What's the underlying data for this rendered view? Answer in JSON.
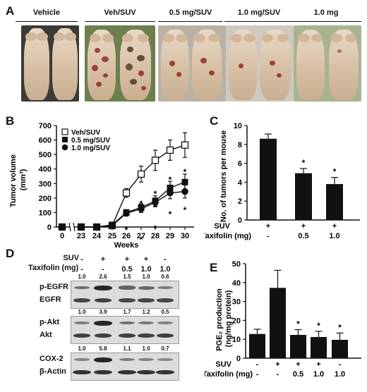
{
  "panel_labels": {
    "a": "A",
    "b": "B",
    "c": "C",
    "d": "D",
    "e": "E"
  },
  "panel_a": {
    "groups": [
      "Vehicle",
      "Veh/SUV",
      "0.5 mg/SUV",
      "1.0 mg/SUV",
      "1.0 mg"
    ]
  },
  "colors": {
    "bar": "#111111",
    "lesion": "#8e2a22",
    "skin": "#e2ceb7"
  },
  "chart_data": [
    {
      "id": "B",
      "type": "line",
      "xlabel": "Weeks",
      "ylabel": "Tumor volume (mm³)",
      "x": [
        0,
        23,
        24,
        25,
        26,
        27,
        28,
        29,
        30
      ],
      "ylim": [
        0,
        700
      ],
      "yticks": [
        0,
        100,
        200,
        300,
        400,
        500,
        600,
        700
      ],
      "axis_break_after_x": 0,
      "legend_position": "top-left",
      "series": [
        {
          "name": "Veh/SUV",
          "marker": "open-square",
          "values": [
            0,
            0,
            0,
            10,
            235,
            365,
            460,
            530,
            565
          ],
          "err": [
            0,
            0,
            0,
            10,
            30,
            55,
            70,
            70,
            85
          ]
        },
        {
          "name": "0.5 mg/SUV",
          "marker": "filled-square",
          "values": [
            0,
            0,
            0,
            15,
            100,
            135,
            180,
            270,
            310
          ],
          "err": [
            0,
            0,
            0,
            8,
            20,
            25,
            35,
            45,
            55
          ]
        },
        {
          "name": "1.0 mg/SUV",
          "marker": "filled-circle",
          "values": [
            0,
            0,
            0,
            10,
            95,
            125,
            170,
            235,
            245
          ],
          "err": [
            0,
            0,
            0,
            8,
            20,
            25,
            30,
            40,
            45
          ]
        }
      ],
      "annotations": [
        "*",
        "*",
        "*",
        "*",
        "*",
        "*",
        "*",
        "*",
        "*",
        "*"
      ]
    },
    {
      "id": "C",
      "type": "bar",
      "ylabel": "No. of tumors per mouse",
      "ylim": [
        0,
        10
      ],
      "yticks": [
        0,
        2,
        4,
        6,
        8,
        10
      ],
      "categories": [
        "SUV + / Taxifolin -",
        "SUV + / Taxifolin 0.5",
        "SUV + / Taxifolin 1.0"
      ],
      "values": [
        8.6,
        4.95,
        3.8
      ],
      "err": [
        0.5,
        0.5,
        0.7
      ],
      "significance": [
        "",
        "*",
        "*"
      ],
      "row_labels": [
        "SUV",
        "Taxifolin (mg)"
      ],
      "suv_row": [
        "+",
        "+",
        "+"
      ],
      "taxifolin_row": [
        "-",
        "0.5",
        "1.0"
      ]
    },
    {
      "id": "E",
      "type": "bar",
      "ylabel": "PGE₂ production (ng/mg protein)",
      "ylim": [
        0,
        50
      ],
      "yticks": [
        0,
        10,
        20,
        30,
        40,
        50
      ],
      "categories": [
        "SUV - / Taxifolin -",
        "SUV + / Taxifolin -",
        "SUV + / Taxifolin 0.5",
        "SUV + / Taxifolin 1.0",
        "SUV - / Taxifolin 1.0"
      ],
      "values": [
        12.8,
        37.2,
        12.3,
        11.2,
        9.7
      ],
      "err": [
        2.5,
        9.3,
        2.8,
        3.0,
        3.6
      ],
      "significance": [
        "",
        "",
        "*",
        "*",
        "*"
      ],
      "row_labels": [
        "SUV",
        "Taxifolin (mg)"
      ],
      "suv_row": [
        "-",
        "+",
        "+",
        "+",
        "-"
      ],
      "taxifolin_row": [
        "-",
        "-",
        "0.5",
        "1.0",
        "1.0"
      ]
    }
  ],
  "panel_d": {
    "row_labels": [
      "SUV",
      "Taxifolin (mg)"
    ],
    "suv_row": [
      "-",
      "+",
      "+",
      "+",
      "-"
    ],
    "taxifolin_row": [
      "-",
      "-",
      "0.5",
      "1.0",
      "1.0"
    ],
    "blots": [
      {
        "name": "p-EGFR",
        "quant": [
          "1.0",
          "2.6",
          "1.5",
          "1.0",
          "0.6"
        ]
      },
      {
        "name": "EGFR"
      },
      {
        "name": "p-Akt",
        "quant": [
          "1.0",
          "3.9",
          "1.7",
          "1.2",
          "0.5"
        ]
      },
      {
        "name": "Akt"
      },
      {
        "name": "COX-2",
        "quant": [
          "1.0",
          "5.8",
          "1.1",
          "1.0",
          "0.7"
        ]
      },
      {
        "name": "β-Actin"
      }
    ]
  }
}
